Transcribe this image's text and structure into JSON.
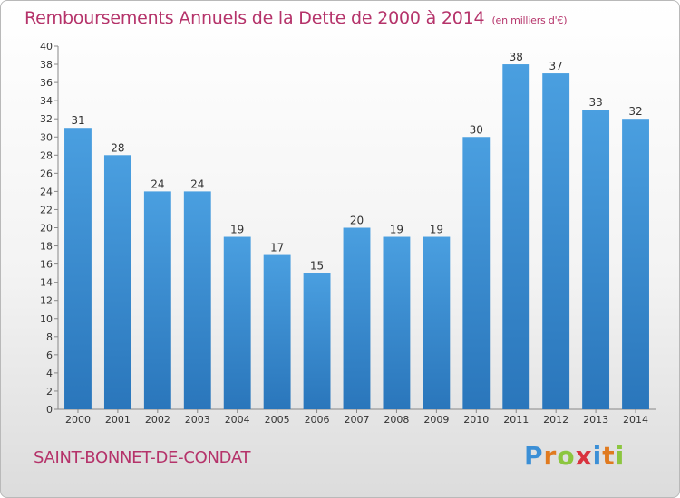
{
  "title": "Remboursements Annuels de la Dette de 2000 à 2014",
  "unit_label": "(en milliers d'€)",
  "town": "SAINT-BONNET-DE-CONDAT",
  "logo": {
    "letters": [
      "P",
      "r",
      "o",
      "x",
      "i",
      "t",
      "i"
    ],
    "colors": [
      "#3b8fd6",
      "#e07a1f",
      "#8cc63f",
      "#d9333f",
      "#3b8fd6",
      "#e07a1f",
      "#8cc63f"
    ]
  },
  "colors": {
    "bar": "#4a9fe0",
    "bar_dark": "#2a76bb",
    "axis": "#888888",
    "grid": "#cfcfcf"
  },
  "chart_data": {
    "type": "bar",
    "title": "Remboursements Annuels de la Dette de 2000 à 2014",
    "xlabel": "",
    "ylabel": "",
    "categories": [
      "2000",
      "2001",
      "2002",
      "2003",
      "2004",
      "2005",
      "2006",
      "2007",
      "2008",
      "2009",
      "2010",
      "2011",
      "2012",
      "2013",
      "2014"
    ],
    "values": [
      31,
      28,
      24,
      24,
      19,
      17,
      15,
      20,
      19,
      19,
      30,
      38,
      37,
      33,
      32
    ],
    "ylim": [
      0,
      40
    ],
    "yticks": [
      0,
      2,
      4,
      6,
      8,
      10,
      12,
      14,
      16,
      18,
      20,
      22,
      24,
      26,
      28,
      30,
      32,
      34,
      36,
      38,
      40
    ],
    "grid": false,
    "legend": "none"
  }
}
